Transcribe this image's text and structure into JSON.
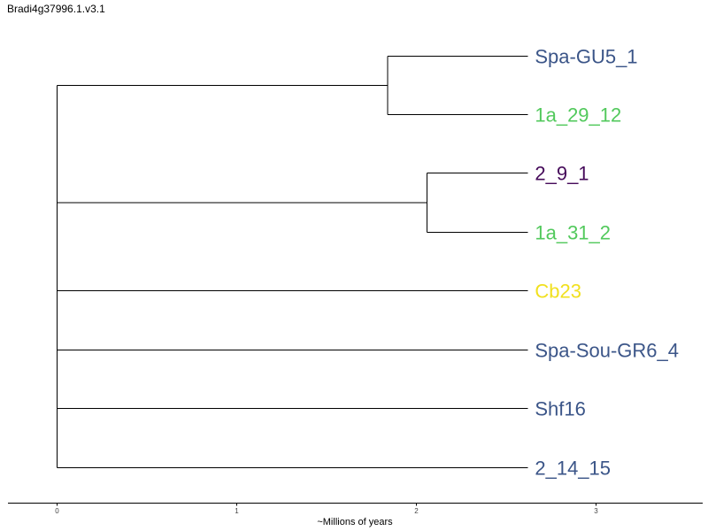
{
  "title": "Bradi4g37996.1.v3.1",
  "axis": {
    "label": "~Millions of years",
    "ticks": [
      "0",
      "1",
      "2",
      "3"
    ]
  },
  "colors": {
    "navy": "#3b5588",
    "green": "#52c95c",
    "purple": "#460b5a",
    "yellow": "#f1e01f",
    "branch": "#000000"
  },
  "tree": {
    "type": "dendrogram",
    "units": "millions of years",
    "tips": [
      {
        "label": "Spa-GU5_1",
        "color": "#3b5588"
      },
      {
        "label": "1a_29_12",
        "color": "#52c95c"
      },
      {
        "label": "2_9_1",
        "color": "#460b5a"
      },
      {
        "label": "1a_31_2",
        "color": "#52c95c"
      },
      {
        "label": "Cb23",
        "color": "#f1e01f"
      },
      {
        "label": "Spa-Sou-GR6_4",
        "color": "#3b5588"
      },
      {
        "label": "Shf16",
        "color": "#3b5588"
      },
      {
        "label": "2_14_15",
        "color": "#3b5588"
      }
    ],
    "tip_age": 2.62,
    "clades": [
      {
        "members": [
          "Spa-GU5_1",
          "1a_29_12"
        ],
        "node_age": 1.84
      },
      {
        "members": [
          "2_9_1",
          "1a_31_2"
        ],
        "node_age": 2.06
      }
    ],
    "root_age": 0
  }
}
